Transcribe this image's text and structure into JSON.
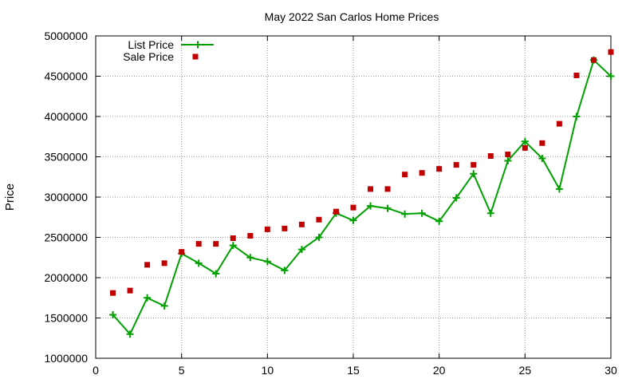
{
  "chart_data": {
    "type": "line",
    "title": "May 2022 San Carlos Home Prices",
    "xlabel": "",
    "ylabel": "Price",
    "xlim": [
      0,
      30
    ],
    "ylim": [
      1000000,
      5000000
    ],
    "xticks": [
      0,
      5,
      10,
      15,
      20,
      25,
      30
    ],
    "yticks": [
      1000000,
      1500000,
      2000000,
      2500000,
      3000000,
      3500000,
      4000000,
      4500000,
      5000000
    ],
    "grid": true,
    "legend_position": "top-left",
    "series": [
      {
        "name": "List Price",
        "style": "line with + markers",
        "color": "#00a000",
        "x": [
          1,
          2,
          3,
          4,
          5,
          6,
          7,
          8,
          9,
          10,
          11,
          12,
          13,
          14,
          15,
          16,
          17,
          18,
          19,
          20,
          21,
          22,
          23,
          24,
          25,
          26,
          27,
          28,
          29,
          30
        ],
        "y": [
          1540000,
          1300000,
          1750000,
          1650000,
          2300000,
          2180000,
          2050000,
          2400000,
          2250000,
          2200000,
          2090000,
          2350000,
          2500000,
          2800000,
          2710000,
          2890000,
          2860000,
          2790000,
          2800000,
          2700000,
          2990000,
          3290000,
          2800000,
          3450000,
          3690000,
          3480000,
          3100000,
          4000000,
          4700000,
          4500000
        ]
      },
      {
        "name": "Sale Price",
        "style": "square markers",
        "color": "#c00000",
        "x": [
          1,
          2,
          3,
          4,
          5,
          6,
          7,
          8,
          9,
          10,
          11,
          12,
          13,
          14,
          15,
          16,
          17,
          18,
          19,
          20,
          21,
          22,
          23,
          24,
          25,
          26,
          27,
          28,
          29,
          30
        ],
        "y": [
          1810000,
          1840000,
          2160000,
          2180000,
          2320000,
          2420000,
          2420000,
          2490000,
          2520000,
          2600000,
          2610000,
          2660000,
          2720000,
          2820000,
          2870000,
          3100000,
          3100000,
          3280000,
          3300000,
          3350000,
          3400000,
          3400000,
          3510000,
          3530000,
          3610000,
          3670000,
          3910000,
          4510000,
          4700000,
          4800000
        ]
      }
    ]
  }
}
